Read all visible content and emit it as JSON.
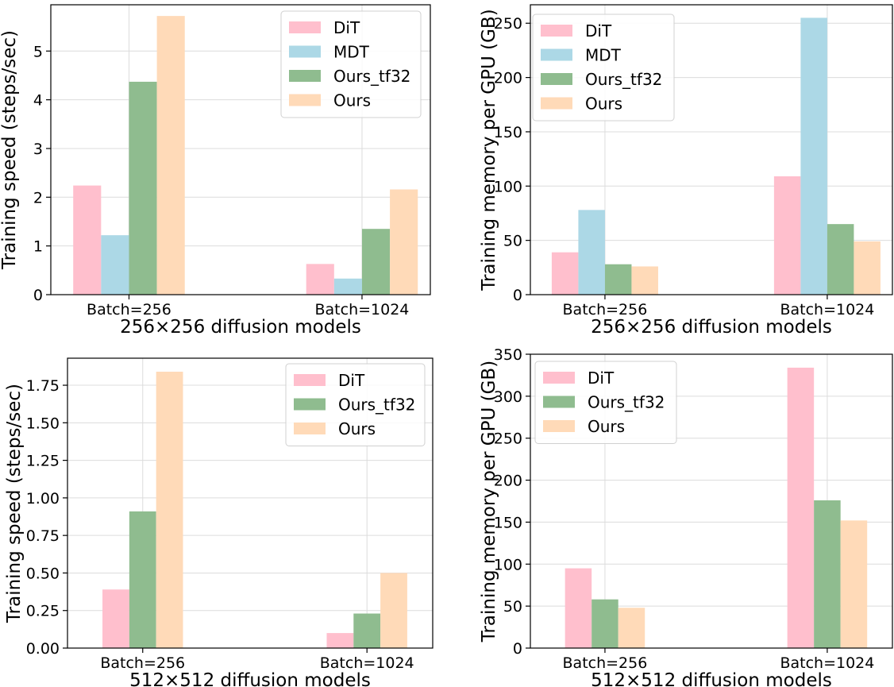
{
  "colors": {
    "DiT": "#ffbfcd",
    "MDT": "#acd8e6",
    "Ours_tf32": "#8fbc8f",
    "Ours": "#ffdab8"
  },
  "chart_data": [
    {
      "id": "a",
      "type": "bar",
      "xlabel": "256×256 diffusion models",
      "ylabel": "Training speed (steps/sec)",
      "categories": [
        "Batch=256",
        "Batch=1024"
      ],
      "series": [
        {
          "name": "DiT",
          "values": [
            2.24,
            0.63
          ]
        },
        {
          "name": "MDT",
          "values": [
            1.22,
            0.33
          ]
        },
        {
          "name": "Ours_tf32",
          "values": [
            4.37,
            1.35
          ]
        },
        {
          "name": "Ours",
          "values": [
            5.72,
            2.16
          ]
        }
      ],
      "ylim": [
        0,
        5.95
      ],
      "yticks": [
        0,
        1,
        2,
        3,
        4,
        5
      ],
      "grid": true,
      "legend": "top-right"
    },
    {
      "id": "b",
      "type": "bar",
      "xlabel": "256×256 diffusion models",
      "ylabel": "Training memory per GPU (GB)",
      "categories": [
        "Batch=256",
        "Batch=1024"
      ],
      "series": [
        {
          "name": "DiT",
          "values": [
            39,
            109
          ]
        },
        {
          "name": "MDT",
          "values": [
            78,
            255
          ]
        },
        {
          "name": "Ours_tf32",
          "values": [
            28,
            65
          ]
        },
        {
          "name": "Ours",
          "values": [
            26,
            49
          ]
        }
      ],
      "ylim": [
        0,
        267
      ],
      "yticks": [
        0,
        50,
        100,
        150,
        200,
        250
      ],
      "grid": true,
      "legend": "top-left"
    },
    {
      "id": "c",
      "type": "bar",
      "xlabel": "512×512 diffusion models",
      "ylabel": "Training speed (steps/sec)",
      "categories": [
        "Batch=256",
        "Batch=1024"
      ],
      "series": [
        {
          "name": "DiT",
          "values": [
            0.39,
            0.1
          ]
        },
        {
          "name": "Ours_tf32",
          "values": [
            0.91,
            0.23
          ]
        },
        {
          "name": "Ours",
          "values": [
            1.84,
            0.5
          ]
        }
      ],
      "ylim": [
        0,
        1.93
      ],
      "yticks": [
        0.0,
        0.25,
        0.5,
        0.75,
        1.0,
        1.25,
        1.5,
        1.75
      ],
      "ytick_labels": [
        "0.00",
        "0.25",
        "0.50",
        "0.75",
        "1.00",
        "1.25",
        "1.50",
        "1.75"
      ],
      "grid": true,
      "legend": "top-right"
    },
    {
      "id": "d",
      "type": "bar",
      "xlabel": "512×512 diffusion models",
      "ylabel": "Training memory per GPU (GB)",
      "categories": [
        "Batch=256",
        "Batch=1024"
      ],
      "series": [
        {
          "name": "DiT",
          "values": [
            95,
            334
          ]
        },
        {
          "name": "Ours_tf32",
          "values": [
            58,
            176
          ]
        },
        {
          "name": "Ours",
          "values": [
            48,
            152
          ]
        }
      ],
      "ylim": [
        0,
        350
      ],
      "yticks": [
        0,
        50,
        100,
        150,
        200,
        250,
        300,
        350
      ],
      "grid": true,
      "legend": "top-left"
    }
  ]
}
